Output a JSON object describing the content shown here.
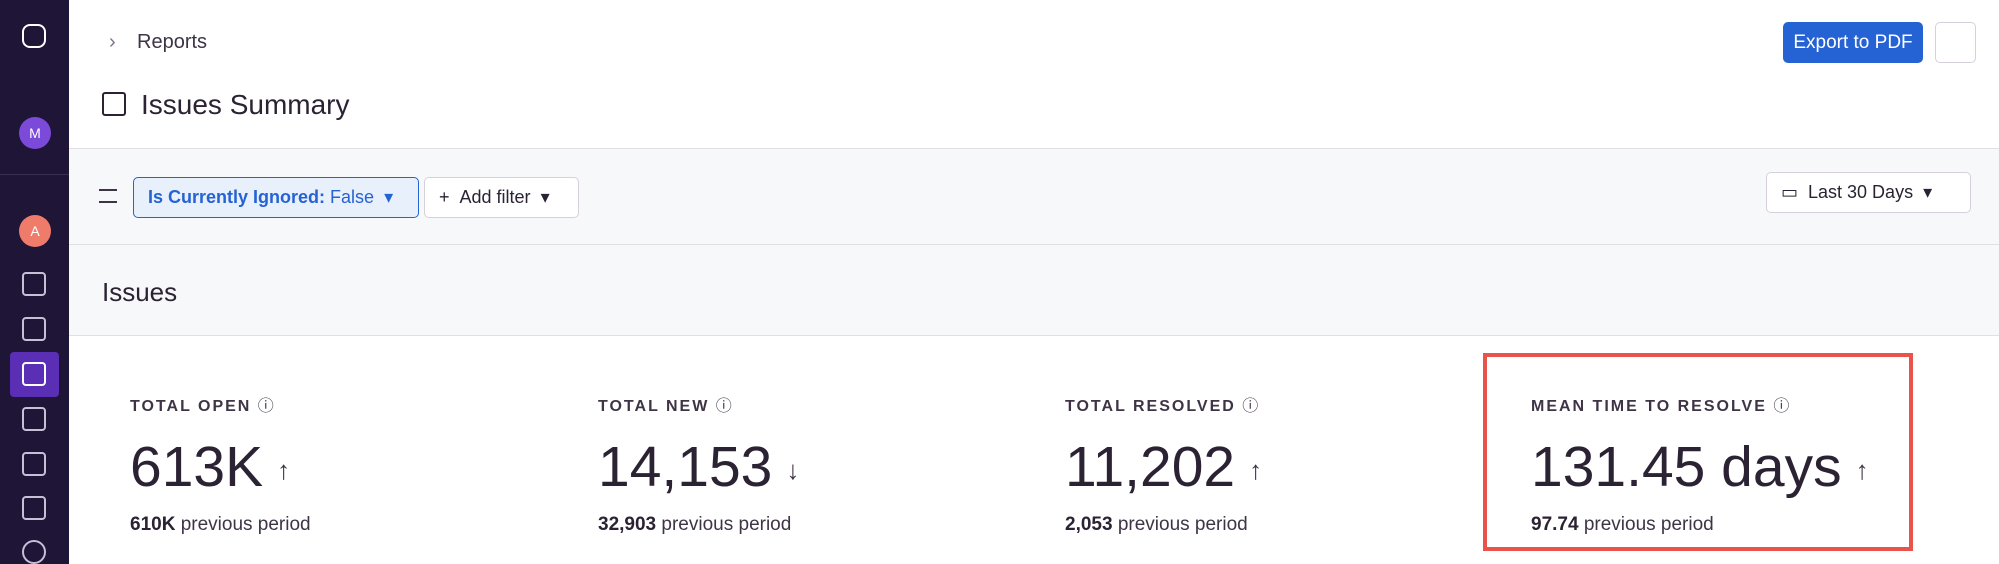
{
  "sidebar": {
    "avatars": [
      "M",
      "A"
    ]
  },
  "header": {
    "breadcrumb": "Reports",
    "title": "Issues Summary",
    "export_button": "Export to PDF"
  },
  "filters": {
    "chips": [
      {
        "key": "Is Currently Ignored:",
        "value": "False"
      }
    ],
    "add_filter": "Add filter",
    "date_range": "Last 30 Days"
  },
  "section": {
    "title": "Issues"
  },
  "metrics": [
    {
      "label": "TOTAL OPEN",
      "value": "613K",
      "trend": "up",
      "previous": "610K",
      "previous_label": "previous period"
    },
    {
      "label": "TOTAL NEW",
      "value": "14,153",
      "trend": "down",
      "previous": "32,903",
      "previous_label": "previous period"
    },
    {
      "label": "TOTAL RESOLVED",
      "value": "11,202",
      "trend": "up",
      "previous": "2,053",
      "previous_label": "previous period"
    },
    {
      "label": "MEAN TIME TO RESOLVE",
      "value": "131.45 days",
      "trend": "up",
      "previous": "97.74",
      "previous_label": "previous period"
    }
  ]
}
